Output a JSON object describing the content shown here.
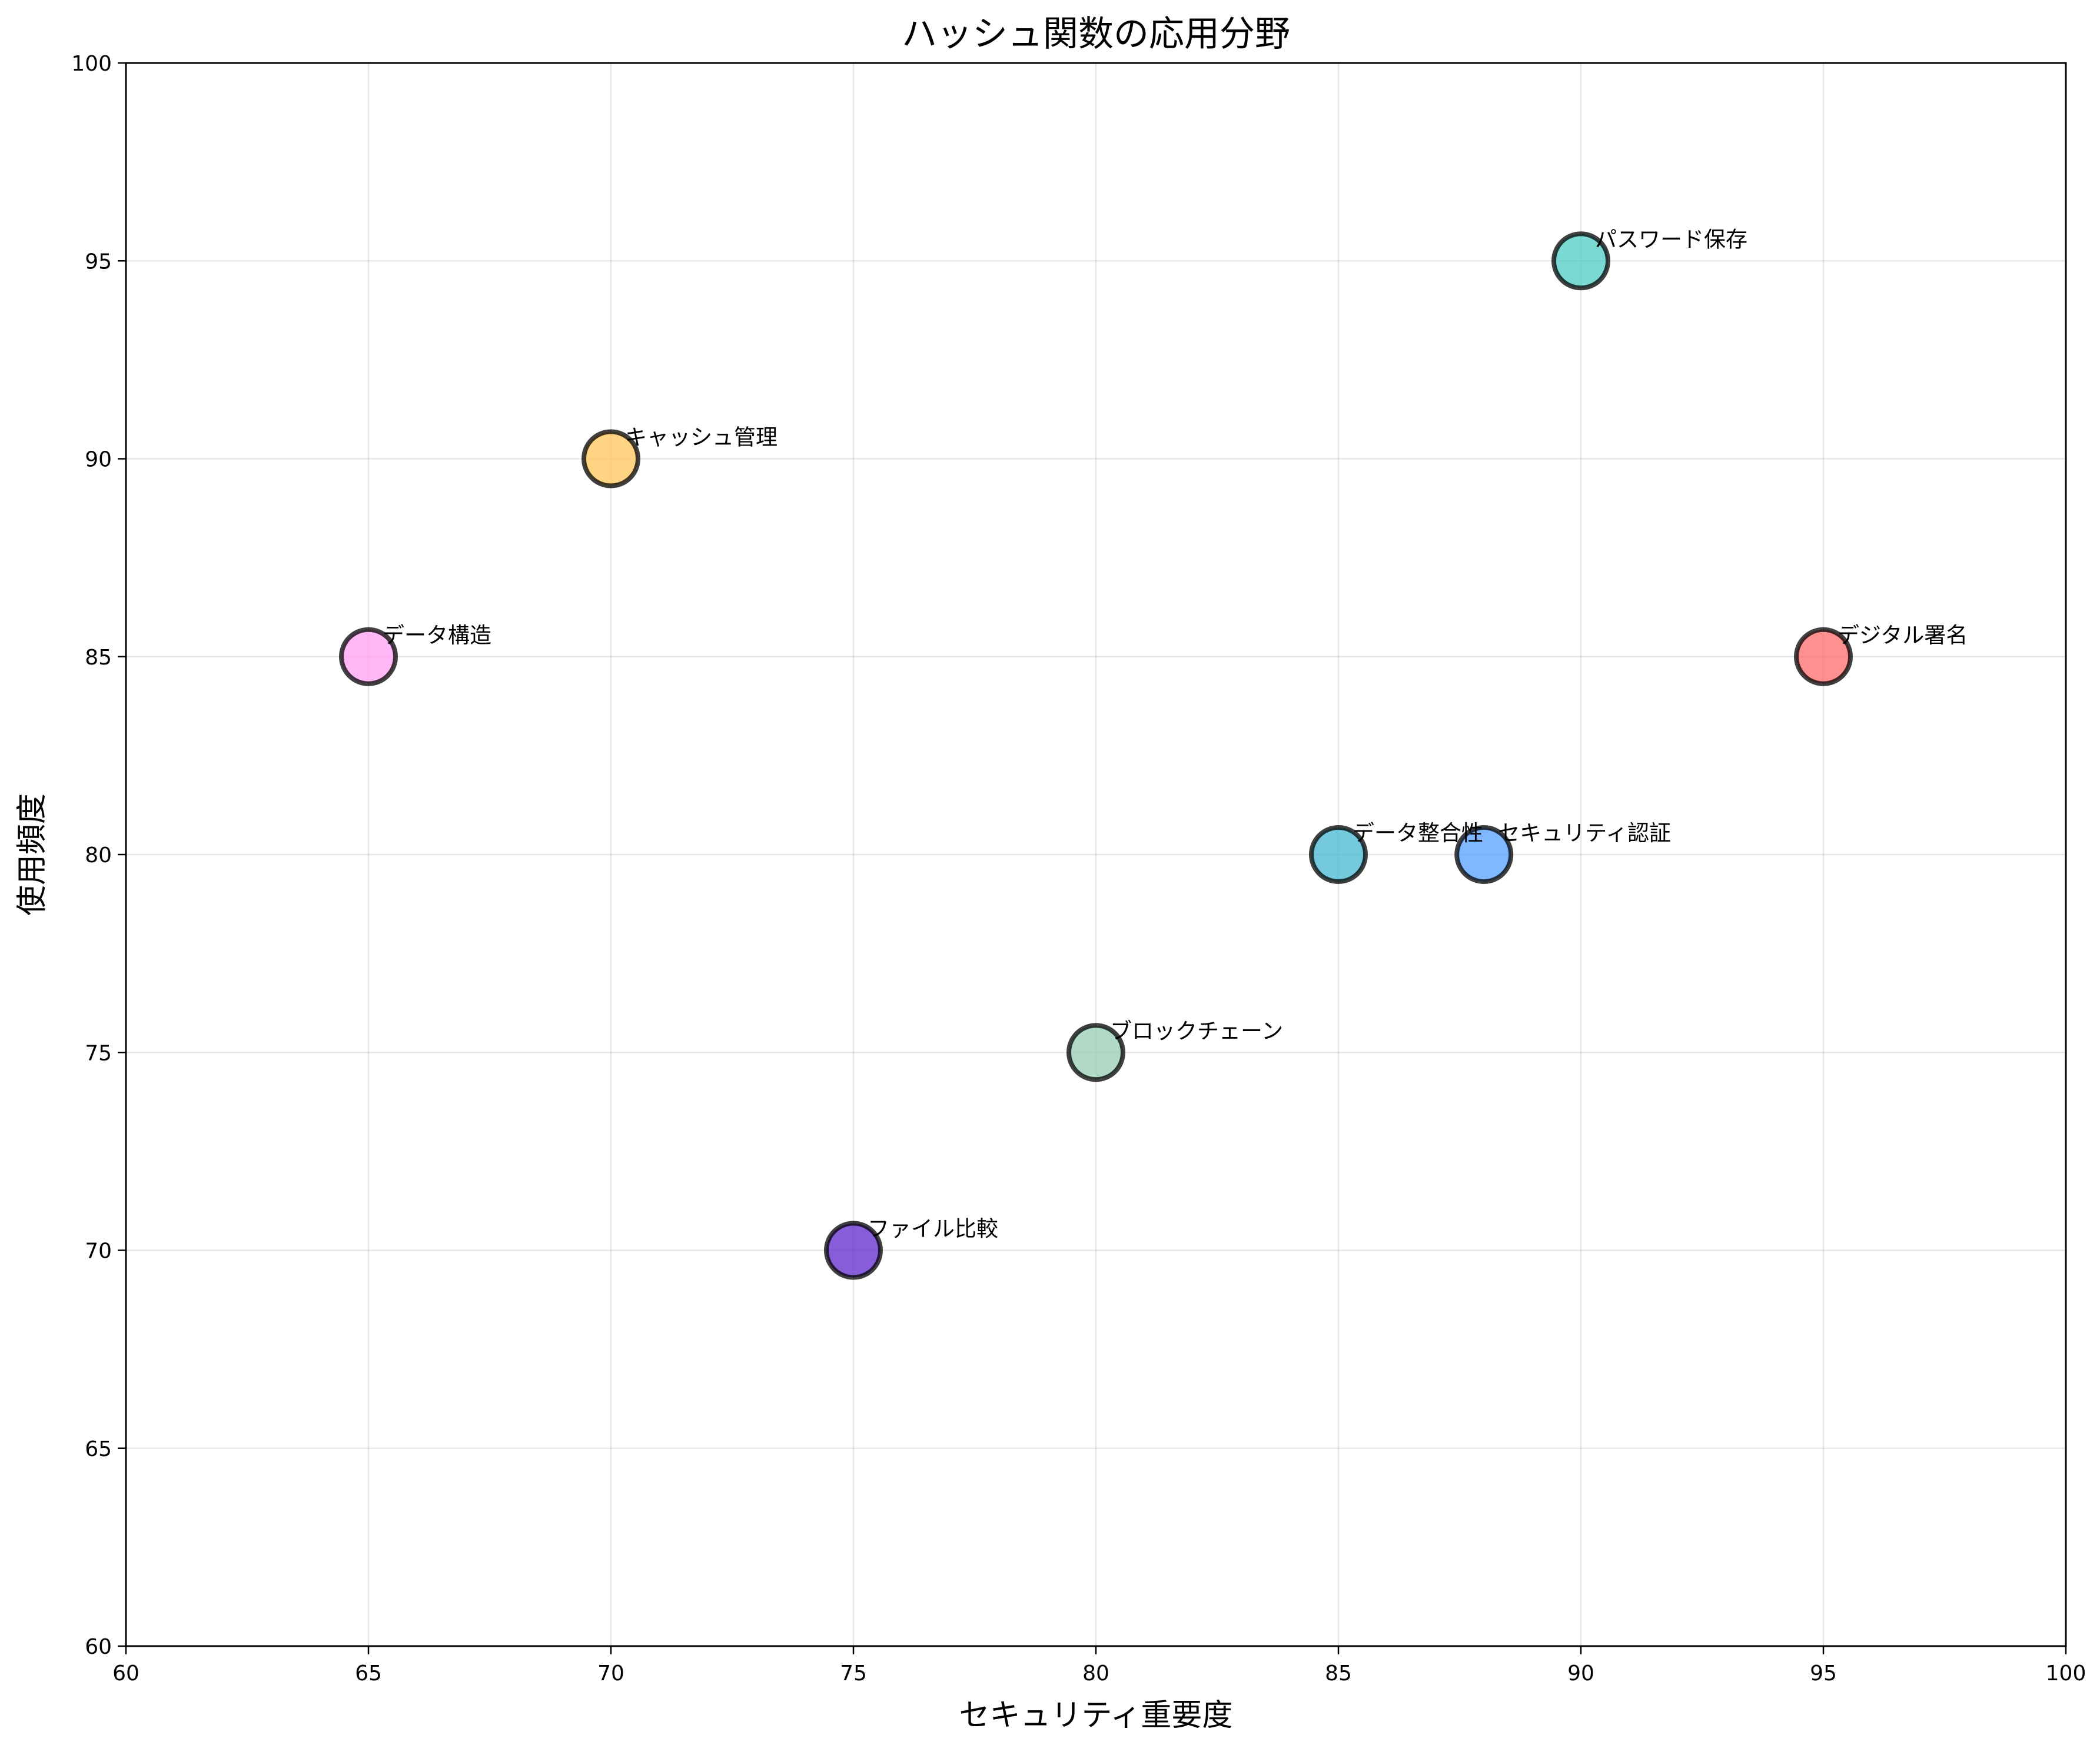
{
  "chart_data": {
    "type": "scatter",
    "title": "ハッシュ関数の応用分野",
    "xlabel": "セキュリティ重要度",
    "ylabel": "使用頻度",
    "xlim": [
      60,
      100
    ],
    "ylim": [
      60,
      100
    ],
    "xticks": [
      60,
      65,
      70,
      75,
      80,
      85,
      90,
      95,
      100
    ],
    "yticks": [
      60,
      65,
      70,
      75,
      80,
      85,
      90,
      95,
      100
    ],
    "grid": true,
    "legend": "none",
    "points": [
      {
        "label": "パスワード保存",
        "x": 90,
        "y": 95,
        "color": "#4ECDC4"
      },
      {
        "label": "デジタル署名",
        "x": 95,
        "y": 85,
        "color": "#FF6B6B"
      },
      {
        "label": "データ整合性",
        "x": 85,
        "y": 80,
        "color": "#45B7D1"
      },
      {
        "label": "ブロックチェーン",
        "x": 80,
        "y": 75,
        "color": "#96CEB4"
      },
      {
        "label": "キャッシュ管理",
        "x": 70,
        "y": 90,
        "color": "#FFC658"
      },
      {
        "label": "データ構造",
        "x": 65,
        "y": 85,
        "color": "#FF9FF3"
      },
      {
        "label": "ファイル比較",
        "x": 75,
        "y": 70,
        "color": "#5F27CD"
      },
      {
        "label": "セキュリティ認証",
        "x": 88,
        "y": 80,
        "color": "#54A0FF"
      }
    ]
  }
}
